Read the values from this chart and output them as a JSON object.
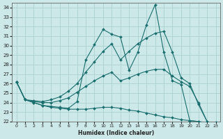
{
  "xlabel": "Humidex (Indice chaleur)",
  "xlim": [
    -0.5,
    23.5
  ],
  "ylim": [
    22,
    34.5
  ],
  "yticks": [
    22,
    23,
    24,
    25,
    26,
    27,
    28,
    29,
    30,
    31,
    32,
    33,
    34
  ],
  "xticks": [
    0,
    1,
    2,
    3,
    4,
    5,
    6,
    7,
    8,
    9,
    10,
    11,
    12,
    13,
    14,
    15,
    16,
    17,
    18,
    19,
    20,
    21,
    22,
    23
  ],
  "bg_color": "#cce8e8",
  "grid_color": "#b0d4d4",
  "line_color": "#1a6e6e",
  "series": {
    "spiky": {
      "x": [
        0,
        1,
        2,
        3,
        4,
        5,
        6,
        7,
        8,
        9,
        10,
        11,
        12,
        13,
        14,
        15,
        16,
        17,
        18,
        19,
        20,
        21,
        22,
        23
      ],
      "y": [
        26.2,
        24.3,
        24.0,
        23.7,
        23.6,
        23.5,
        23.4,
        24.1,
        28.5,
        30.1,
        31.7,
        31.2,
        30.9,
        27.4,
        29.3,
        32.2,
        34.3,
        29.3,
        26.3,
        25.9,
        22.1,
        22.0,
        null,
        null
      ]
    },
    "smooth_upper": {
      "x": [
        0,
        1,
        2,
        3,
        4,
        5,
        6,
        7,
        8,
        9,
        10,
        11,
        12,
        13,
        14,
        15,
        16,
        17,
        18,
        19,
        20,
        21,
        22,
        23
      ],
      "y": [
        26.2,
        24.3,
        24.2,
        24.1,
        24.3,
        24.6,
        25.2,
        26.0,
        27.2,
        28.3,
        29.4,
        30.2,
        28.5,
        29.4,
        30.2,
        30.8,
        31.3,
        31.5,
        29.3,
        26.6,
        26.0,
        23.8,
        22.0,
        null
      ]
    },
    "smooth_mid": {
      "x": [
        0,
        1,
        2,
        3,
        4,
        5,
        6,
        7,
        8,
        9,
        10,
        11,
        12,
        13,
        14,
        15,
        16,
        17,
        18,
        19,
        20,
        21,
        22,
        23
      ],
      "y": [
        26.2,
        24.3,
        24.1,
        24.0,
        24.0,
        24.2,
        24.5,
        25.1,
        25.7,
        26.3,
        26.8,
        27.2,
        26.3,
        26.6,
        27.0,
        27.3,
        27.5,
        27.5,
        26.8,
        26.2,
        25.7,
        24.0,
        22.0,
        null
      ]
    },
    "declining": {
      "x": [
        0,
        1,
        2,
        3,
        4,
        5,
        6,
        7,
        8,
        9,
        10,
        11,
        12,
        13,
        14,
        15,
        16,
        17,
        18,
        19,
        20,
        21,
        22,
        23
      ],
      "y": [
        26.2,
        24.3,
        24.0,
        23.7,
        23.5,
        23.4,
        23.3,
        23.3,
        23.3,
        23.4,
        23.5,
        23.5,
        23.4,
        23.2,
        23.1,
        22.9,
        22.7,
        22.5,
        22.4,
        22.2,
        22.1,
        22.0,
        21.9,
        21.9
      ]
    }
  }
}
